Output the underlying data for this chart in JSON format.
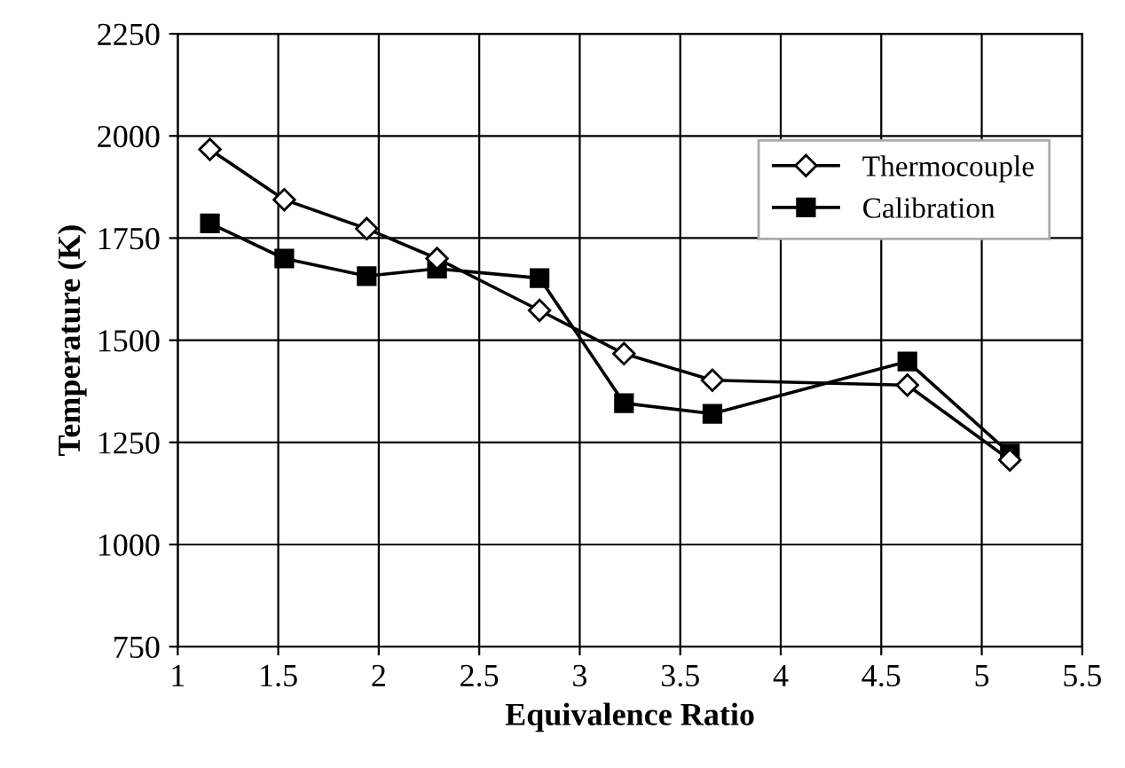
{
  "chart_data": {
    "type": "line",
    "xlabel": "Equivalence Ratio",
    "ylabel": "Temperature (K)",
    "x": [
      1.16,
      1.53,
      1.94,
      2.29,
      2.8,
      3.22,
      3.66,
      4.63,
      5.14
    ],
    "series": [
      {
        "name": "Thermocouple",
        "color": "#000000",
        "marker": "diamond",
        "values": [
          1967,
          1844,
          1773,
          1700,
          1573,
          1467,
          1402,
          1390,
          1207
        ]
      },
      {
        "name": "Calibration",
        "color": "#000000",
        "marker": "square",
        "values": [
          1786,
          1700,
          1657,
          1675,
          1652,
          1346,
          1320,
          1448,
          1223
        ]
      }
    ],
    "xlim": [
      1,
      5.5
    ],
    "xticks": [
      1,
      1.5,
      2,
      2.5,
      3,
      3.5,
      4,
      4.5,
      5,
      5.5
    ],
    "ylim": [
      750,
      2250
    ],
    "yticks": [
      750,
      1000,
      1250,
      1500,
      1750,
      2000,
      2250
    ],
    "grid": true,
    "legend": "top right",
    "line_style": "solid"
  }
}
